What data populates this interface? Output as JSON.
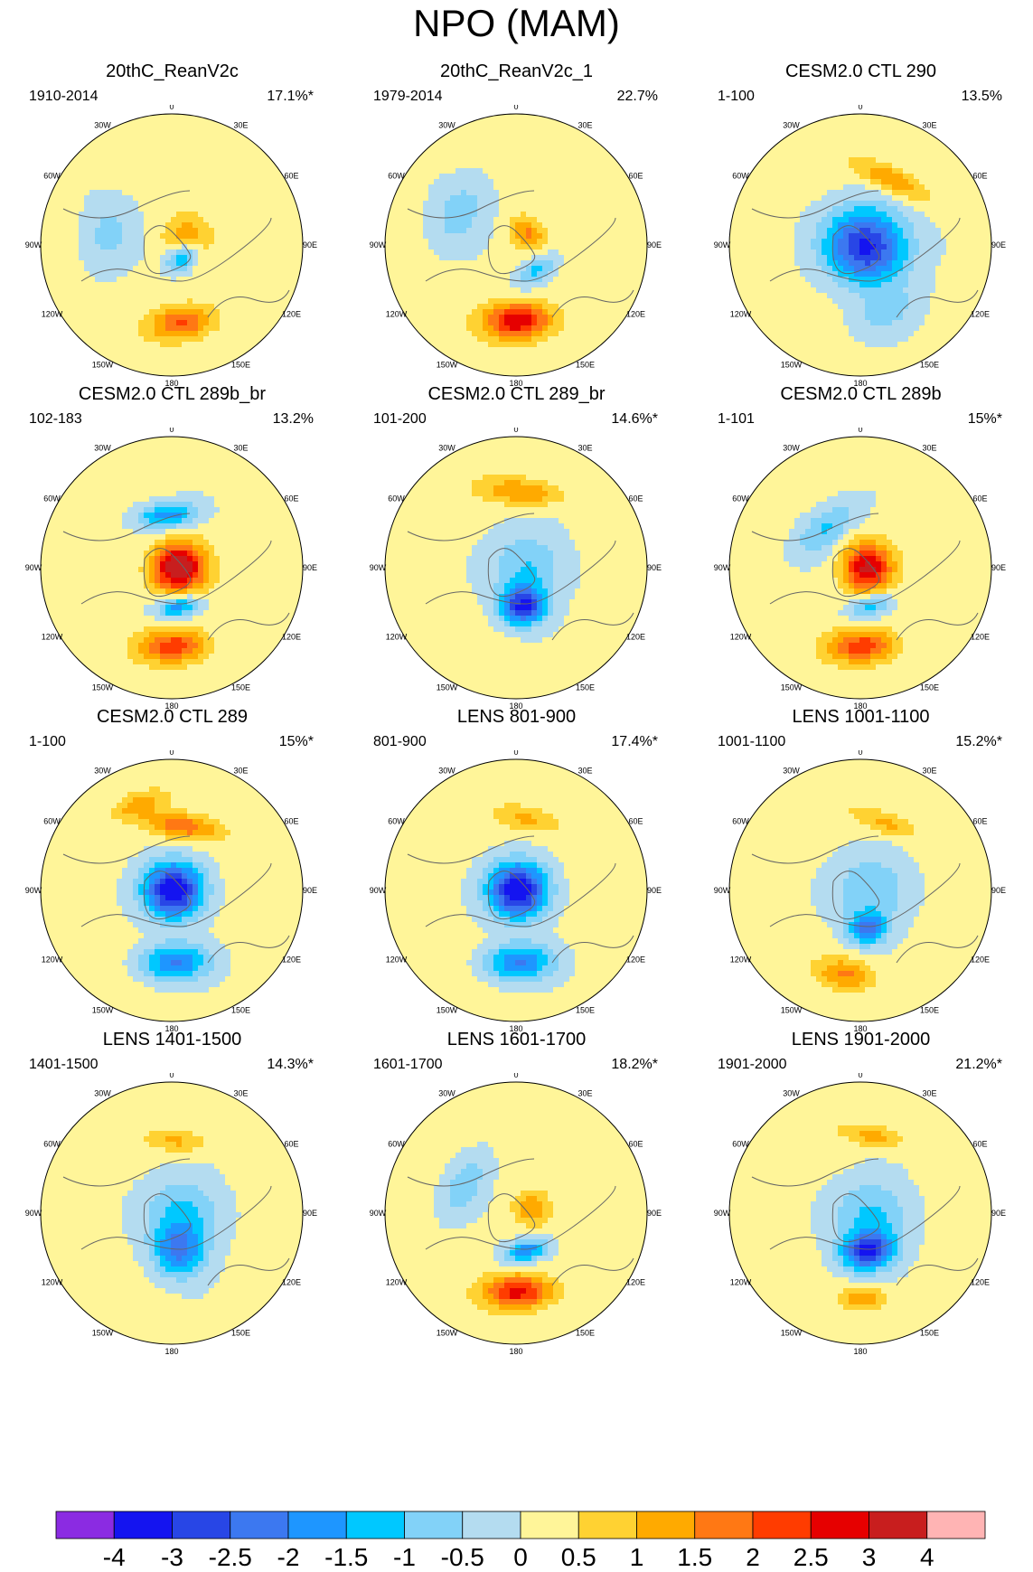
{
  "title": "NPO (MAM)",
  "longitude_labels": [
    "180",
    "150E",
    "120E",
    "90E",
    "60E",
    "30E",
    "0",
    "30W",
    "60W",
    "90W",
    "120W",
    "150W"
  ],
  "panels": [
    {
      "title": "20thC_ReanV2c",
      "period": "1910-2014",
      "variance": "17.1%*",
      "fields": [
        {
          "lon": 172,
          "r": 0.6,
          "amp": 2.0,
          "sx": 0.17,
          "sy": 0.09
        },
        {
          "lon": 140,
          "r": 0.12,
          "amp": -2.0,
          "sx": 0.09,
          "sy": 0.07
        },
        {
          "lon": 60,
          "r": 0.12,
          "amp": 1.2,
          "sx": 0.12,
          "sy": 0.12
        },
        {
          "lon": -80,
          "r": 0.5,
          "amp": -0.8,
          "sx": 0.2,
          "sy": 0.14
        }
      ]
    },
    {
      "title": "20thC_ReanV2c_1",
      "period": "1979-2014",
      "variance": "22.7%",
      "fields": [
        {
          "lon": 178,
          "r": 0.58,
          "amp": 2.8,
          "sx": 0.18,
          "sy": 0.1
        },
        {
          "lon": 140,
          "r": 0.25,
          "amp": -1.3,
          "sx": 0.12,
          "sy": 0.07
        },
        {
          "lon": 45,
          "r": 0.12,
          "amp": 1.4,
          "sx": 0.1,
          "sy": 0.08
        },
        {
          "lon": -60,
          "r": 0.5,
          "amp": -0.9,
          "sx": 0.22,
          "sy": 0.14
        }
      ]
    },
    {
      "title": "CESM2.0 CTL 290",
      "period": "1-100",
      "variance": "13.5%",
      "fields": [
        {
          "lon": 100,
          "r": 0.05,
          "amp": -3.3,
          "sx": 0.2,
          "sy": 0.22
        },
        {
          "lon": 25,
          "r": 0.55,
          "amp": 1.4,
          "sx": 0.2,
          "sy": 0.07
        },
        {
          "lon": 160,
          "r": 0.55,
          "amp": -0.7,
          "sx": 0.2,
          "sy": 0.12
        }
      ]
    },
    {
      "title": "CESM2.0 CTL 289b_br",
      "period": "102-183",
      "variance": "13.2%",
      "fields": [
        {
          "lon": 178,
          "r": 0.6,
          "amp": 2.2,
          "sx": 0.18,
          "sy": 0.09
        },
        {
          "lon": 170,
          "r": 0.3,
          "amp": -2.0,
          "sx": 0.12,
          "sy": 0.06
        },
        {
          "lon": 90,
          "r": 0.05,
          "amp": 3.6,
          "sx": 0.13,
          "sy": 0.14
        },
        {
          "lon": -5,
          "r": 0.4,
          "amp": -2.0,
          "sx": 0.16,
          "sy": 0.07
        }
      ]
    },
    {
      "title": "CESM2.0 CTL 289_br",
      "period": "101-200",
      "variance": "14.6%*",
      "fields": [
        {
          "lon": 170,
          "r": 0.3,
          "amp": -3.0,
          "sx": 0.12,
          "sy": 0.1
        },
        {
          "lon": 90,
          "r": 0.1,
          "amp": -1.2,
          "sx": 0.2,
          "sy": 0.2
        },
        {
          "lon": 5,
          "r": 0.58,
          "amp": 1.4,
          "sx": 0.22,
          "sy": 0.07
        }
      ]
    },
    {
      "title": "CESM2.0 CTL 289b",
      "period": "1-101",
      "variance": "15%*",
      "fields": [
        {
          "lon": 178,
          "r": 0.6,
          "amp": 2.2,
          "sx": 0.18,
          "sy": 0.09
        },
        {
          "lon": 165,
          "r": 0.3,
          "amp": -1.5,
          "sx": 0.12,
          "sy": 0.06
        },
        {
          "lon": 90,
          "r": 0.05,
          "amp": 3.0,
          "sx": 0.13,
          "sy": 0.13
        },
        {
          "lon": -40,
          "r": 0.4,
          "amp": -1.2,
          "sx": 0.2,
          "sy": 0.1
        }
      ]
    },
    {
      "title": "CESM2.0 CTL 289",
      "period": "1-100",
      "variance": "15%*",
      "fields": [
        {
          "lon": 178,
          "r": 0.55,
          "amp": -2.2,
          "sx": 0.18,
          "sy": 0.1
        },
        {
          "lon": 90,
          "r": 0.02,
          "amp": -3.8,
          "sx": 0.15,
          "sy": 0.16
        },
        {
          "lon": 10,
          "r": 0.5,
          "amp": 1.8,
          "sx": 0.2,
          "sy": 0.07
        },
        {
          "lon": -20,
          "r": 0.7,
          "amp": 1.0,
          "sx": 0.15,
          "sy": 0.06
        }
      ]
    },
    {
      "title": "LENS 801-900",
      "period": "801-900",
      "variance": "17.4%*",
      "fields": [
        {
          "lon": 178,
          "r": 0.55,
          "amp": -2.2,
          "sx": 0.18,
          "sy": 0.1
        },
        {
          "lon": 90,
          "r": 0.02,
          "amp": -3.8,
          "sx": 0.15,
          "sy": 0.16
        },
        {
          "lon": 10,
          "r": 0.55,
          "amp": 1.0,
          "sx": 0.18,
          "sy": 0.07
        }
      ]
    },
    {
      "title": "LENS 1001-1100",
      "period": "1001-1100",
      "variance": "15.2%*",
      "fields": [
        {
          "lon": -170,
          "r": 0.65,
          "amp": 1.4,
          "sx": 0.15,
          "sy": 0.08
        },
        {
          "lon": 170,
          "r": 0.3,
          "amp": -2.2,
          "sx": 0.1,
          "sy": 0.08
        },
        {
          "lon": 90,
          "r": 0.1,
          "amp": -1.2,
          "sx": 0.2,
          "sy": 0.2
        },
        {
          "lon": 20,
          "r": 0.55,
          "amp": 1.1,
          "sx": 0.18,
          "sy": 0.06
        }
      ]
    },
    {
      "title": "LENS 1401-1500",
      "period": "1401-1500",
      "variance": "14.3%*",
      "fields": [
        {
          "lon": 170,
          "r": 0.3,
          "amp": -2.0,
          "sx": 0.14,
          "sy": 0.14
        },
        {
          "lon": 90,
          "r": 0.1,
          "amp": -1.3,
          "sx": 0.2,
          "sy": 0.2
        },
        {
          "lon": 5,
          "r": 0.55,
          "amp": 1.0,
          "sx": 0.16,
          "sy": 0.06
        }
      ]
    },
    {
      "title": "LENS 1601-1700",
      "period": "1601-1700",
      "variance": "18.2%*",
      "fields": [
        {
          "lon": 178,
          "r": 0.6,
          "amp": 2.6,
          "sx": 0.18,
          "sy": 0.09
        },
        {
          "lon": 165,
          "r": 0.3,
          "amp": -2.0,
          "sx": 0.12,
          "sy": 0.06
        },
        {
          "lon": 70,
          "r": 0.12,
          "amp": 1.3,
          "sx": 0.09,
          "sy": 0.09
        },
        {
          "lon": -60,
          "r": 0.45,
          "amp": -1.0,
          "sx": 0.2,
          "sy": 0.1
        }
      ]
    },
    {
      "title": "LENS 1901-2000",
      "period": "1901-2000",
      "variance": "21.2%*",
      "fields": [
        {
          "lon": 178,
          "r": 0.65,
          "amp": 1.4,
          "sx": 0.12,
          "sy": 0.06
        },
        {
          "lon": 170,
          "r": 0.3,
          "amp": -3.0,
          "sx": 0.14,
          "sy": 0.1
        },
        {
          "lon": 100,
          "r": 0.1,
          "amp": -1.3,
          "sx": 0.2,
          "sy": 0.2
        },
        {
          "lon": 10,
          "r": 0.6,
          "amp": 1.1,
          "sx": 0.16,
          "sy": 0.06
        }
      ]
    }
  ],
  "colorbar": {
    "colors": [
      "#8b2be2",
      "#1414f0",
      "#2846e6",
      "#3c78f0",
      "#1e96ff",
      "#00c8ff",
      "#82d2f8",
      "#b4dcf0",
      "#fff599",
      "#ffd232",
      "#ffaa00",
      "#ff7814",
      "#ff3c00",
      "#e60000",
      "#c81e1e",
      "#ffb4b4"
    ],
    "labels": [
      "-4",
      "-3",
      "-2.5",
      "-2",
      "-1.5",
      "-1",
      "-0.5",
      "0",
      "0.5",
      "1",
      "1.5",
      "2",
      "2.5",
      "3",
      "4"
    ]
  }
}
